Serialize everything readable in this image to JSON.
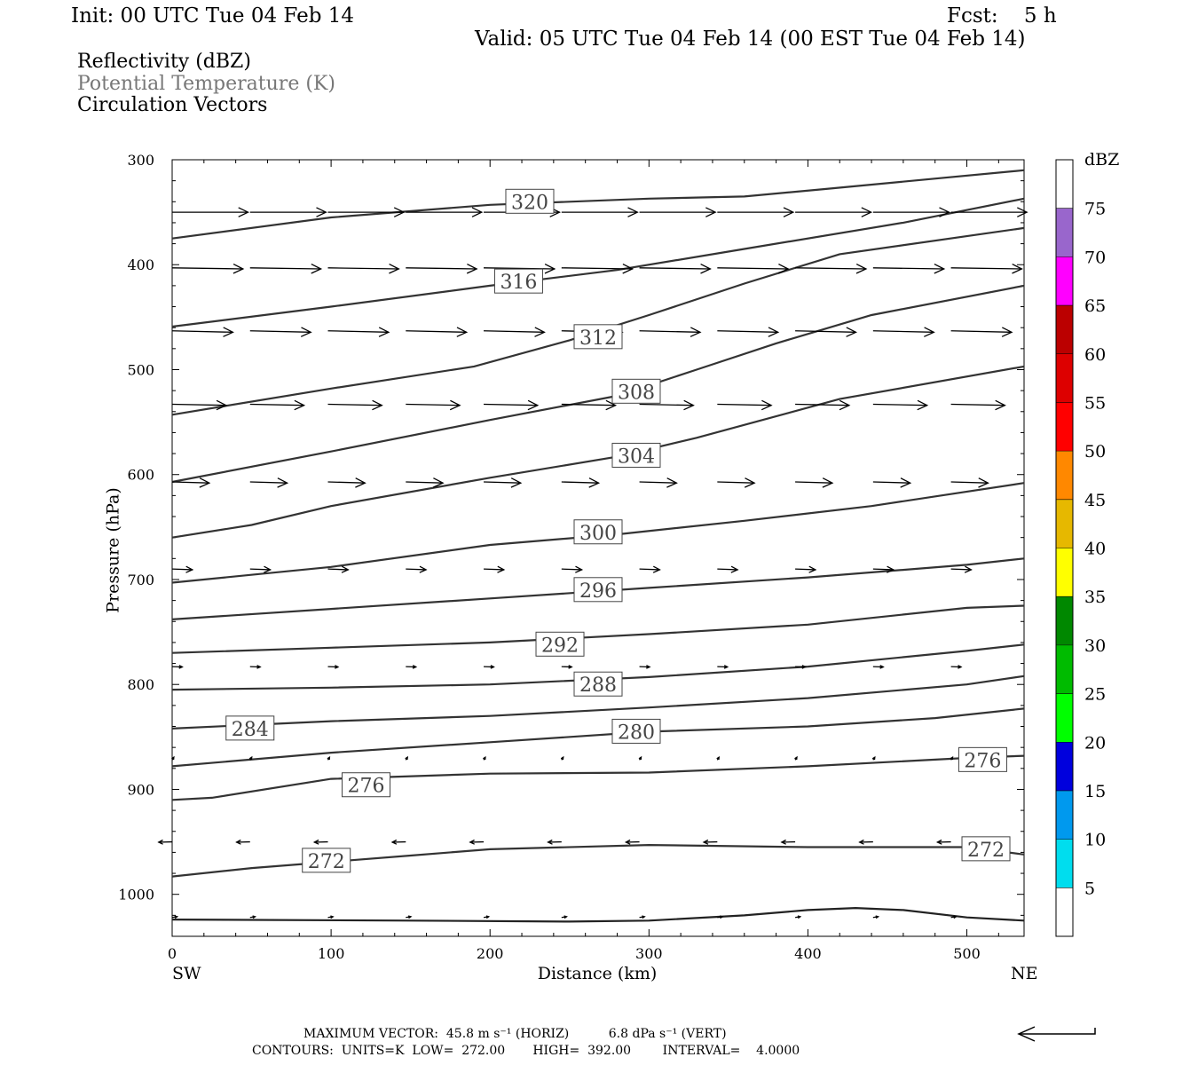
{
  "header": {
    "init": "Init: 00 UTC Tue 04 Feb 14",
    "fcst": "Fcst:    5 h",
    "valid": "Valid: 05 UTC Tue 04 Feb 14 (00 EST Tue 04 Feb 14)"
  },
  "fields": [
    {
      "label": "Reflectivity (dBZ)",
      "color": "#000000"
    },
    {
      "label": "Potential Temperature (K)",
      "color": "#777777"
    },
    {
      "label": "Circulation Vectors",
      "color": "#000000"
    }
  ],
  "chart_data": {
    "type": "cross-section",
    "xlabel": "Distance (km)",
    "ylabel": "Pressure (hPa)",
    "xlim": [
      0,
      536
    ],
    "ylim": [
      300,
      1040
    ],
    "y_scale": "linear, inverted",
    "x_ticks": [
      0,
      100,
      200,
      300,
      400,
      500
    ],
    "y_ticks": [
      300,
      400,
      500,
      600,
      700,
      800,
      900,
      1000
    ],
    "x_end_labels": {
      "left": "SW",
      "right": "NE"
    },
    "isentropes": [
      {
        "level": 320,
        "points": [
          [
            0,
            375
          ],
          [
            100,
            355
          ],
          [
            200,
            343
          ],
          [
            300,
            337
          ],
          [
            360,
            335
          ],
          [
            410,
            328
          ],
          [
            536,
            310
          ]
        ],
        "label_at": [
          225,
          340
        ]
      },
      {
        "level": 316,
        "points": [
          [
            0,
            459
          ],
          [
            100,
            440
          ],
          [
            200,
            420
          ],
          [
            280,
            405
          ],
          [
            360,
            385
          ],
          [
            460,
            360
          ],
          [
            536,
            337
          ]
        ],
        "label_at": [
          218,
          416
        ]
      },
      {
        "level": 312,
        "points": [
          [
            0,
            543
          ],
          [
            100,
            518
          ],
          [
            190,
            497
          ],
          [
            250,
            472
          ],
          [
            300,
            448
          ],
          [
            360,
            418
          ],
          [
            420,
            390
          ],
          [
            536,
            365
          ]
        ],
        "label_at": [
          268,
          469
        ]
      },
      {
        "level": 308,
        "points": [
          [
            0,
            607
          ],
          [
            100,
            578
          ],
          [
            200,
            548
          ],
          [
            280,
            525
          ],
          [
            330,
            500
          ],
          [
            380,
            475
          ],
          [
            440,
            448
          ],
          [
            536,
            420
          ]
        ],
        "label_at": [
          292,
          521
        ]
      },
      {
        "level": 304,
        "points": [
          [
            0,
            660
          ],
          [
            50,
            648
          ],
          [
            100,
            630
          ],
          [
            200,
            603
          ],
          [
            280,
            583
          ],
          [
            330,
            565
          ],
          [
            420,
            528
          ],
          [
            536,
            497
          ]
        ],
        "label_at": [
          292,
          582
        ]
      },
      {
        "level": 300,
        "points": [
          [
            0,
            703
          ],
          [
            100,
            688
          ],
          [
            200,
            667
          ],
          [
            280,
            657
          ],
          [
            360,
            644
          ],
          [
            440,
            630
          ],
          [
            536,
            608
          ]
        ],
        "label_at": [
          268,
          655
        ]
      },
      {
        "level": 296,
        "points": [
          [
            0,
            738
          ],
          [
            100,
            728
          ],
          [
            200,
            718
          ],
          [
            300,
            708
          ],
          [
            400,
            698
          ],
          [
            500,
            686
          ],
          [
            536,
            680
          ]
        ],
        "label_at": [
          268,
          710
        ]
      },
      {
        "level": 292,
        "points": [
          [
            0,
            770
          ],
          [
            100,
            765
          ],
          [
            200,
            760
          ],
          [
            300,
            752
          ],
          [
            400,
            743
          ],
          [
            500,
            727
          ],
          [
            536,
            725
          ]
        ],
        "label_at": [
          244,
          762
        ]
      },
      {
        "level": 288,
        "points": [
          [
            0,
            805
          ],
          [
            100,
            803
          ],
          [
            200,
            800
          ],
          [
            300,
            793
          ],
          [
            400,
            783
          ],
          [
            500,
            768
          ],
          [
            536,
            762
          ]
        ],
        "label_at": [
          268,
          800
        ]
      },
      {
        "level": 284,
        "points": [
          [
            0,
            842
          ],
          [
            100,
            835
          ],
          [
            200,
            830
          ],
          [
            300,
            822
          ],
          [
            400,
            813
          ],
          [
            500,
            800
          ],
          [
            536,
            792
          ]
        ],
        "label_at": [
          49,
          842
        ]
      },
      {
        "level": 280,
        "points": [
          [
            0,
            878
          ],
          [
            100,
            865
          ],
          [
            200,
            855
          ],
          [
            300,
            845
          ],
          [
            400,
            840
          ],
          [
            480,
            832
          ],
          [
            536,
            823
          ]
        ],
        "label_at": [
          292,
          845
        ]
      },
      {
        "level": 276,
        "points": [
          [
            0,
            910
          ],
          [
            25,
            908
          ],
          [
            100,
            890
          ],
          [
            200,
            885
          ],
          [
            300,
            884
          ],
          [
            400,
            878
          ],
          [
            500,
            870
          ],
          [
            536,
            868
          ]
        ],
        "label_at": [
          122,
          896
        ]
      },
      {
        "level": 276,
        "points": [
          [
            500,
            870
          ],
          [
            536,
            868
          ]
        ],
        "label_at": [
          510,
          872
        ]
      },
      {
        "level": 272,
        "points": [
          [
            0,
            983
          ],
          [
            50,
            975
          ],
          [
            150,
            963
          ],
          [
            200,
            957
          ],
          [
            300,
            953
          ],
          [
            400,
            955
          ],
          [
            500,
            955
          ],
          [
            536,
            962
          ]
        ],
        "label_at": [
          97,
          968
        ]
      },
      {
        "level": 272,
        "points": [
          [
            500,
            955
          ],
          [
            536,
            962
          ]
        ],
        "label_at": [
          512,
          957
        ]
      }
    ],
    "surface_line": [
      [
        0,
        1024
      ],
      [
        150,
        1025
      ],
      [
        250,
        1026
      ],
      [
        300,
        1025
      ],
      [
        360,
        1020
      ],
      [
        400,
        1015
      ],
      [
        430,
        1013
      ],
      [
        460,
        1015
      ],
      [
        500,
        1022
      ],
      [
        536,
        1025
      ]
    ],
    "reflectivity_colorbar": {
      "title": "dBZ",
      "levels": [
        75,
        70,
        65,
        60,
        55,
        50,
        45,
        40,
        35,
        30,
        25,
        20,
        15,
        10,
        5
      ],
      "colors": [
        "#ffffff",
        "#9966cc",
        "#ff00ff",
        "#bb0000",
        "#dd0000",
        "#ff0000",
        "#ff8800",
        "#e6b800",
        "#ffff00",
        "#008800",
        "#00bb00",
        "#00ff00",
        "#0000dd",
        "#0099ee",
        "#00ddee",
        "#ffffff"
      ]
    },
    "vectors": [
      {
        "p": 350,
        "u": 45,
        "w": 0
      },
      {
        "p": 403,
        "u": 42,
        "w": 0.3
      },
      {
        "p": 463,
        "u": 36,
        "w": 0.4
      },
      {
        "p": 533,
        "u": 32,
        "w": 0.3
      },
      {
        "p": 607,
        "u": 22,
        "w": 0.3
      },
      {
        "p": 690,
        "u": 12,
        "w": 0.2
      },
      {
        "p": 783,
        "u": 6,
        "w": 0.1
      },
      {
        "p": 872,
        "u": 1,
        "w": -0.8
      },
      {
        "p": 950,
        "u": -8,
        "w": 0.1
      },
      {
        "p": 1022,
        "u": 3,
        "w": -0.2
      }
    ]
  },
  "footer": {
    "max_vector": "MAXIMUM VECTOR:  45.8 m s⁻¹ (HORIZ)          6.8 dPa s⁻¹ (VERT)",
    "contours": "CONTOURS:  UNITS=K  LOW=  272.00       HIGH=  392.00        INTERVAL=    4.0000"
  }
}
